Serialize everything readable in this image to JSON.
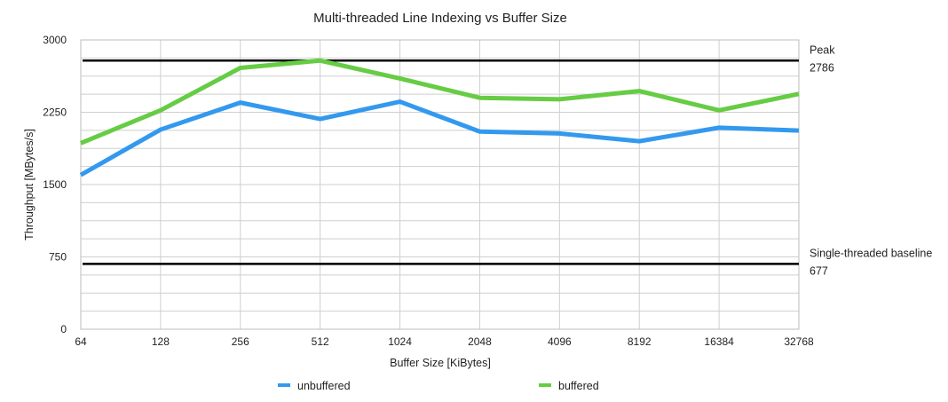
{
  "chart_data": {
    "type": "line",
    "title": "Multi-threaded Line Indexing vs Buffer Size",
    "xlabel": "Buffer Size [KiBytes]",
    "ylabel": "Throughput [MBytes/s]",
    "categories": [
      "64",
      "128",
      "256",
      "512",
      "1024",
      "2048",
      "4096",
      "8192",
      "16384",
      "32768"
    ],
    "ylim": [
      0,
      3000
    ],
    "yticks": [
      0,
      750,
      1500,
      2250,
      3000
    ],
    "grid": true,
    "legend_position": "bottom",
    "series": [
      {
        "name": "unbuffered",
        "color": "#3399ee",
        "values": [
          1600,
          2070,
          2350,
          2180,
          2360,
          2050,
          2030,
          1950,
          2090,
          2060
        ]
      },
      {
        "name": "buffered",
        "color": "#66cc44",
        "values": [
          1930,
          2270,
          2710,
          2786,
          2600,
          2400,
          2385,
          2470,
          2270,
          2440
        ]
      }
    ],
    "reference_lines": [
      {
        "name": "Peak",
        "value": 2786,
        "value_label": "2786",
        "color": "#000000"
      },
      {
        "name": "Single-threaded baseline",
        "value": 677,
        "value_label": "677",
        "color": "#000000"
      }
    ]
  }
}
